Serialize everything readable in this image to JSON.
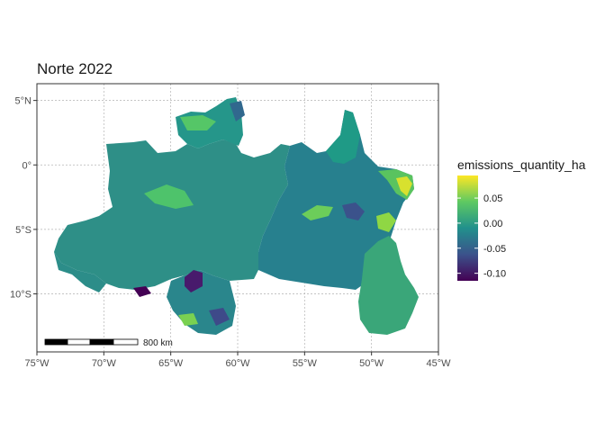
{
  "title": "Norte 2022",
  "colors": {
    "low": "#440154",
    "mid_low": "#3b528b",
    "mid": "#21908c",
    "mid_high": "#5ec962",
    "high": "#fde725",
    "panel_border": "#333333",
    "grid": "#b3b3b3"
  },
  "map_data": {
    "type": "choropleth",
    "region": "Norte",
    "year": 2022,
    "x_axis": {
      "ticks": [
        -75,
        -70,
        -65,
        -60,
        -55,
        -50,
        -45
      ],
      "tick_labels": [
        "75°W",
        "70°W",
        "65°W",
        "60°W",
        "55°W",
        "50°W",
        "45°W"
      ]
    },
    "y_axis": {
      "ticks": [
        5,
        0,
        -5,
        -10
      ],
      "tick_labels": [
        "5°N",
        "0°",
        "5°S",
        "10°S"
      ]
    },
    "xlim": [
      -75,
      -45
    ],
    "ylim": [
      -14.5,
      6.3
    ],
    "grid": true
  },
  "legend": {
    "title": "emissions_quantity_ha",
    "range": [
      -0.115,
      0.095
    ],
    "ticks": [
      0.05,
      0.0,
      -0.05,
      -0.1
    ],
    "tick_labels": [
      "0.05",
      "0.00",
      "-0.05",
      "-0.10"
    ],
    "position": "right"
  },
  "scalebar": {
    "label": "800 km"
  }
}
